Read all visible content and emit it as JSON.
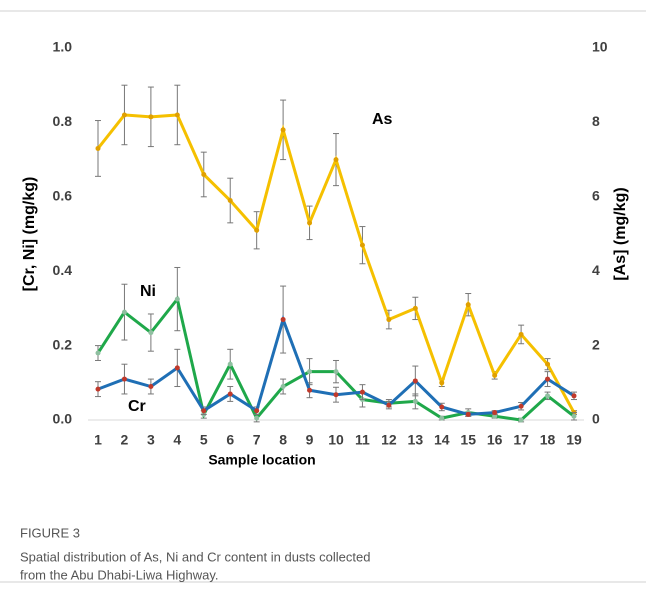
{
  "chart_data": {
    "type": "line",
    "xlabel": "Sample location",
    "ylabel": "[Cr, Ni] (mg/kg)",
    "y2label": "[As] (mg/kg)",
    "categories": [
      "1",
      "2",
      "3",
      "4",
      "5",
      "6",
      "7",
      "8",
      "9",
      "10",
      "11",
      "12",
      "13",
      "14",
      "15",
      "16",
      "17",
      "18",
      "19"
    ],
    "ylim": [
      0,
      1.0
    ],
    "yticks": [
      {
        "value": 0,
        "label": "0.0"
      },
      0.2,
      0.4,
      0.6,
      0.8,
      {
        "value": 1.0,
        "label": "1.0"
      }
    ],
    "y2lim": [
      0,
      10
    ],
    "y2ticks": [
      0,
      2,
      4,
      6,
      8,
      10
    ],
    "grid": false,
    "series": [
      {
        "name": "As",
        "axis": "y2",
        "color": "#f5c000",
        "marker_color": "#e0a000",
        "values": [
          7.3,
          8.2,
          8.15,
          8.2,
          6.6,
          5.9,
          5.1,
          7.8,
          5.3,
          7.0,
          4.7,
          2.7,
          3.0,
          1.0,
          3.1,
          1.2,
          2.3,
          1.5,
          0.2
        ],
        "errors": [
          0.75,
          0.8,
          0.8,
          0.8,
          0.6,
          0.6,
          0.5,
          0.8,
          0.45,
          0.7,
          0.5,
          0.25,
          0.3,
          0.1,
          0.3,
          0.1,
          0.25,
          0.15,
          0.05
        ]
      },
      {
        "name": "Ni",
        "color": "#1fa84a",
        "marker_color": "#8fbfa0",
        "values": [
          0.18,
          0.29,
          0.235,
          0.325,
          0.015,
          0.15,
          0.005,
          0.09,
          0.13,
          0.13,
          0.055,
          0.045,
          0.05,
          0.005,
          0.02,
          0.01,
          0,
          0.065,
          0.01
        ],
        "errors": [
          0.02,
          0.075,
          0.05,
          0.085,
          0.01,
          0.04,
          0.01,
          0.02,
          0.035,
          0.03,
          0.02,
          0.01,
          0.02,
          0.005,
          0.01,
          0.005,
          0.005,
          0.01,
          0.01
        ]
      },
      {
        "name": "Cr",
        "color": "#1f6fb5",
        "marker_color": "#c0392b",
        "values": [
          0.083,
          0.11,
          0.09,
          0.14,
          0.025,
          0.07,
          0.025,
          0.27,
          0.08,
          0.068,
          0.075,
          0.04,
          0.105,
          0.035,
          0.015,
          0.02,
          0.037,
          0.11,
          0.065
        ],
        "errors": [
          0.02,
          0.04,
          0.02,
          0.05,
          0.01,
          0.02,
          0.01,
          0.09,
          0.02,
          0.02,
          0.02,
          0.01,
          0.04,
          0.01,
          0.005,
          0.005,
          0.01,
          0.02,
          0.01
        ]
      }
    ]
  },
  "caption": {
    "label": "FIGURE 3",
    "lines": [
      "Spatial distribution of As, Ni and Cr content in dusts collected",
      "from the Abu Dhabi-Liwa Highway."
    ]
  }
}
